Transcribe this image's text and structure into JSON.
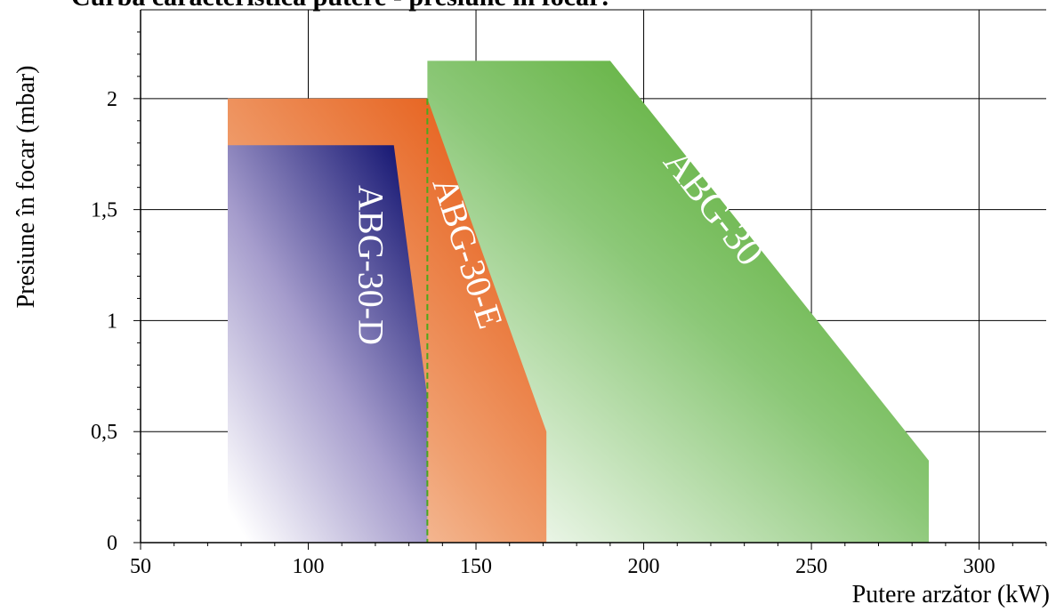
{
  "chart_data": {
    "type": "area",
    "title": "Curba caracteristica putere - presiune în focar:",
    "xlabel": "Putere arzător (kW)",
    "ylabel": "Presiune în focar (mbar)",
    "xlim": [
      50,
      320
    ],
    "ylim": [
      0,
      2.4
    ],
    "x_ticks": [
      50,
      100,
      150,
      200,
      250,
      300
    ],
    "x_tick_labels": [
      "50",
      "100",
      "150",
      "200",
      "250",
      "300"
    ],
    "y_ticks": [
      0,
      0.5,
      1,
      1.5,
      2
    ],
    "y_tick_labels": [
      "0",
      "0,5",
      "1",
      "1,5",
      "2"
    ],
    "grid": true,
    "series": [
      {
        "name": "ABG-30",
        "color": "#4aa81c",
        "points": [
          [
            135.5,
            0
          ],
          [
            135.5,
            2.17
          ],
          [
            190,
            2.17
          ],
          [
            285,
            0.37
          ],
          [
            285,
            0
          ]
        ]
      },
      {
        "name": "ABG-30-E",
        "color": "#e8580f",
        "points": [
          [
            76,
            0
          ],
          [
            76,
            2.0
          ],
          [
            135.5,
            2.0
          ],
          [
            171,
            0.5
          ],
          [
            171,
            0
          ]
        ]
      },
      {
        "name": "ABG-30-D",
        "color": "#0f0f6e",
        "points": [
          [
            76,
            0
          ],
          [
            76,
            1.79
          ],
          [
            125.5,
            1.79
          ],
          [
            135.5,
            0.65
          ],
          [
            135.5,
            0
          ]
        ]
      }
    ],
    "dashed_line": {
      "x": 135.5,
      "y_top": 2.0,
      "color": "#4aa81c"
    }
  }
}
